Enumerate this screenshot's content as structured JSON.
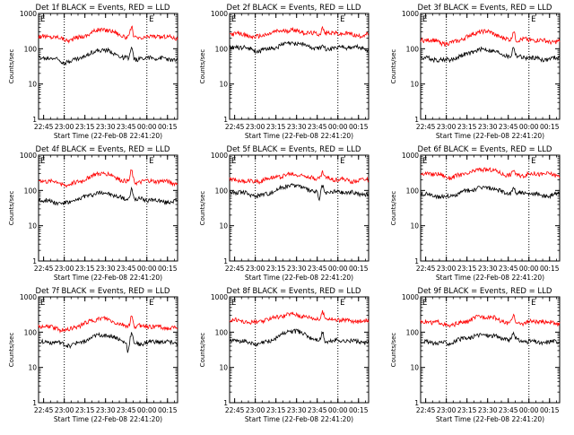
{
  "chart_data": [
    {
      "type": "line",
      "title": "Det 1f BLACK = Events, RED = LLD",
      "xlabel": "Start Time (22-Feb-08 22:41:20)",
      "ylabel": "Counts/sec",
      "yscale": "log",
      "ylim": [
        1,
        1000
      ],
      "yticks": [
        1,
        10,
        100,
        1000
      ],
      "ytick_labels": [
        "1",
        "10",
        "100",
        "1000"
      ],
      "xlim_minutes": [
        0,
        101
      ],
      "xticks_minutes": [
        3.67,
        18.67,
        33.67,
        48.67,
        63.67,
        78.67,
        93.67
      ],
      "xtick_labels": [
        "22:45",
        "23:00",
        "23:15",
        "23:30",
        "23:45",
        "00:00",
        "00:15"
      ],
      "vlines_minutes": [
        18.67,
        78.67
      ],
      "markers": [
        {
          "label": "E",
          "minutes": 1.3
        },
        {
          "label": "E",
          "minutes": 80.2
        }
      ],
      "series": [
        {
          "name": "LLD",
          "color": "#ff0000",
          "base": 210,
          "hump": 1.6,
          "spike": 2.0,
          "dip": false,
          "phase": 0.3
        },
        {
          "name": "Events",
          "color": "#000000",
          "base": 52,
          "hump": 1.7,
          "spike": 2.0,
          "dip": false,
          "phase": 1.1
        }
      ]
    },
    {
      "type": "line",
      "title": "Det 2f BLACK = Events, RED = LLD",
      "xlabel": "Start Time (22-Feb-08 22:41:20)",
      "ylabel": "Counts/sec",
      "yscale": "log",
      "ylim": [
        1,
        1000
      ],
      "yticks": [
        1,
        10,
        100,
        1000
      ],
      "ytick_labels": [
        "1",
        "10",
        "100",
        "1000"
      ],
      "xlim_minutes": [
        0,
        101
      ],
      "xticks_minutes": [
        3.67,
        18.67,
        33.67,
        48.67,
        63.67,
        78.67,
        93.67
      ],
      "xtick_labels": [
        "22:45",
        "23:00",
        "23:15",
        "23:30",
        "23:45",
        "00:00",
        "00:15"
      ],
      "vlines_minutes": [
        18.67,
        78.67
      ],
      "markers": [
        {
          "label": "E",
          "minutes": 1.3
        },
        {
          "label": "E",
          "minutes": 80.2
        }
      ],
      "series": [
        {
          "name": "LLD",
          "color": "#ff0000",
          "base": 260,
          "hump": 1.3,
          "spike": 1.5,
          "dip": false,
          "phase": 2.1
        },
        {
          "name": "Events",
          "color": "#000000",
          "base": 105,
          "hump": 1.3,
          "spike": 1.4,
          "dip": false,
          "phase": 0.7
        }
      ]
    },
    {
      "type": "line",
      "title": "Det 3f BLACK = Events, RED = LLD",
      "xlabel": "Start Time (22-Feb-08 22:41:20)",
      "ylabel": "Counts/sec",
      "yscale": "log",
      "ylim": [
        1,
        1000
      ],
      "yticks": [
        1,
        10,
        100,
        1000
      ],
      "ytick_labels": [
        "1",
        "10",
        "100",
        "1000"
      ],
      "xlim_minutes": [
        0,
        101
      ],
      "xticks_minutes": [
        3.67,
        18.67,
        33.67,
        48.67,
        63.67,
        78.67,
        93.67
      ],
      "xtick_labels": [
        "22:45",
        "23:00",
        "23:15",
        "23:30",
        "23:45",
        "00:00",
        "00:15"
      ],
      "vlines_minutes": [
        18.67,
        78.67
      ],
      "markers": [
        {
          "label": "E",
          "minutes": 1.3
        },
        {
          "label": "E",
          "minutes": 80.2
        }
      ],
      "series": [
        {
          "name": "LLD",
          "color": "#ff0000",
          "base": 170,
          "hump": 1.8,
          "spike": 1.9,
          "dip": false,
          "phase": 1.7
        },
        {
          "name": "Events",
          "color": "#000000",
          "base": 55,
          "hump": 1.8,
          "spike": 1.9,
          "dip": false,
          "phase": 2.9
        }
      ]
    },
    {
      "type": "line",
      "title": "Det 4f BLACK = Events, RED = LLD",
      "xlabel": "Start Time (22-Feb-08 22:41:20)",
      "ylabel": "Counts/sec",
      "yscale": "log",
      "ylim": [
        1,
        1000
      ],
      "yticks": [
        1,
        10,
        100,
        1000
      ],
      "ytick_labels": [
        "1",
        "10",
        "100",
        "1000"
      ],
      "xlim_minutes": [
        0,
        101
      ],
      "xticks_minutes": [
        3.67,
        18.67,
        33.67,
        48.67,
        63.67,
        78.67,
        93.67
      ],
      "xtick_labels": [
        "22:45",
        "23:00",
        "23:15",
        "23:30",
        "23:45",
        "00:00",
        "00:15"
      ],
      "vlines_minutes": [
        18.67,
        78.67
      ],
      "markers": [
        {
          "label": "E",
          "minutes": 1.3
        },
        {
          "label": "E",
          "minutes": 80.2
        }
      ],
      "series": [
        {
          "name": "LLD",
          "color": "#ff0000",
          "base": 175,
          "hump": 1.7,
          "spike": 2.1,
          "dip": false,
          "phase": 0.9
        },
        {
          "name": "Events",
          "color": "#000000",
          "base": 52,
          "hump": 1.7,
          "spike": 2.1,
          "dip": false,
          "phase": 2.3
        }
      ]
    },
    {
      "type": "line",
      "title": "Det 5f BLACK = Events, RED = LLD",
      "xlabel": "Start Time (22-Feb-08 22:41:20)",
      "ylabel": "Counts/sec",
      "yscale": "log",
      "ylim": [
        1,
        1000
      ],
      "yticks": [
        1,
        10,
        100,
        1000
      ],
      "ytick_labels": [
        "1",
        "10",
        "100",
        "1000"
      ],
      "xlim_minutes": [
        0,
        101
      ],
      "xticks_minutes": [
        3.67,
        18.67,
        33.67,
        48.67,
        63.67,
        78.67,
        93.67
      ],
      "xtick_labels": [
        "22:45",
        "23:00",
        "23:15",
        "23:30",
        "23:45",
        "00:00",
        "00:15"
      ],
      "vlines_minutes": [
        18.67,
        78.67
      ],
      "markers": [
        {
          "label": "E",
          "minutes": 1.3
        },
        {
          "label": "E",
          "minutes": 80.2
        }
      ],
      "series": [
        {
          "name": "LLD",
          "color": "#ff0000",
          "base": 205,
          "hump": 1.45,
          "spike": 1.5,
          "dip": false,
          "phase": 3.1
        },
        {
          "name": "Events",
          "color": "#000000",
          "base": 85,
          "hump": 1.6,
          "spike": 1.6,
          "dip": true,
          "phase": 1.4
        }
      ]
    },
    {
      "type": "line",
      "title": "Det 6f BLACK = Events, RED = LLD",
      "xlabel": "Start Time (22-Feb-08 22:41:20)",
      "ylabel": "Counts/sec",
      "yscale": "log",
      "ylim": [
        1,
        1000
      ],
      "yticks": [
        1,
        10,
        100,
        1000
      ],
      "ytick_labels": [
        "1",
        "10",
        "100",
        "1000"
      ],
      "xlim_minutes": [
        0,
        101
      ],
      "xticks_minutes": [
        3.67,
        18.67,
        33.67,
        48.67,
        63.67,
        78.67,
        93.67
      ],
      "xtick_labels": [
        "22:45",
        "23:00",
        "23:15",
        "23:30",
        "23:45",
        "00:00",
        "00:15"
      ],
      "vlines_minutes": [
        18.67,
        78.67
      ],
      "markers": [
        {
          "label": "E",
          "minutes": 1.3
        },
        {
          "label": "E",
          "minutes": 80.2
        }
      ],
      "series": [
        {
          "name": "LLD",
          "color": "#ff0000",
          "base": 280,
          "hump": 1.35,
          "spike": 1.4,
          "dip": false,
          "phase": 0.5
        },
        {
          "name": "Events",
          "color": "#000000",
          "base": 78,
          "hump": 1.6,
          "spike": 1.5,
          "dip": false,
          "phase": 2.6
        }
      ]
    },
    {
      "type": "line",
      "title": "Det 7f BLACK = Events, RED = LLD",
      "xlabel": "Start Time (22-Feb-08 22:41:20)",
      "ylabel": "Counts/sec",
      "yscale": "log",
      "ylim": [
        1,
        1000
      ],
      "yticks": [
        1,
        10,
        100,
        1000
      ],
      "ytick_labels": [
        "1",
        "10",
        "100",
        "1000"
      ],
      "xlim_minutes": [
        0,
        101
      ],
      "xticks_minutes": [
        3.67,
        18.67,
        33.67,
        48.67,
        63.67,
        78.67,
        93.67
      ],
      "xtick_labels": [
        "22:45",
        "23:00",
        "23:15",
        "23:30",
        "23:45",
        "00:00",
        "00:15"
      ],
      "vlines_minutes": [
        18.67,
        78.67
      ],
      "markers": [
        {
          "label": "E",
          "minutes": 1.3
        },
        {
          "label": "E",
          "minutes": 80.2
        }
      ],
      "series": [
        {
          "name": "LLD",
          "color": "#ff0000",
          "base": 140,
          "hump": 1.7,
          "spike": 2.0,
          "dip": false,
          "phase": 1.9
        },
        {
          "name": "Events",
          "color": "#000000",
          "base": 50,
          "hump": 1.6,
          "spike": 1.8,
          "dip": true,
          "phase": 0.2
        }
      ]
    },
    {
      "type": "line",
      "title": "Det 8f BLACK = Events, RED = LLD",
      "xlabel": "Start Time (22-Feb-08 22:41:20)",
      "ylabel": "Counts/sec",
      "yscale": "log",
      "ylim": [
        1,
        1000
      ],
      "yticks": [
        1,
        10,
        100,
        1000
      ],
      "ytick_labels": [
        "1",
        "10",
        "100",
        "1000"
      ],
      "xlim_minutes": [
        0,
        101
      ],
      "xticks_minutes": [
        3.67,
        18.67,
        33.67,
        48.67,
        63.67,
        78.67,
        93.67
      ],
      "xtick_labels": [
        "22:45",
        "23:00",
        "23:15",
        "23:30",
        "23:45",
        "00:00",
        "00:15"
      ],
      "vlines_minutes": [
        18.67,
        78.67
      ],
      "markers": [
        {
          "label": "E",
          "minutes": 1.3
        },
        {
          "label": "E",
          "minutes": 80.2
        }
      ],
      "series": [
        {
          "name": "LLD",
          "color": "#ff0000",
          "base": 220,
          "hump": 1.5,
          "spike": 1.6,
          "dip": false,
          "phase": 2.7
        },
        {
          "name": "Events",
          "color": "#000000",
          "base": 55,
          "hump": 1.9,
          "spike": 1.8,
          "dip": false,
          "phase": 1.2
        }
      ]
    },
    {
      "type": "line",
      "title": "Det 9f BLACK = Events, RED = LLD",
      "xlabel": "Start Time (22-Feb-08 22:41:20)",
      "ylabel": "Counts/sec",
      "yscale": "log",
      "ylim": [
        1,
        1000
      ],
      "yticks": [
        1,
        10,
        100,
        1000
      ],
      "ytick_labels": [
        "1",
        "10",
        "100",
        "1000"
      ],
      "xlim_minutes": [
        0,
        101
      ],
      "xticks_minutes": [
        3.67,
        18.67,
        33.67,
        48.67,
        63.67,
        78.67,
        93.67
      ],
      "xtick_labels": [
        "22:45",
        "23:00",
        "23:15",
        "23:30",
        "23:45",
        "00:00",
        "00:15"
      ],
      "vlines_minutes": [
        18.67,
        78.67
      ],
      "markers": [
        {
          "label": "E",
          "minutes": 1.3
        },
        {
          "label": "E",
          "minutes": 80.2
        }
      ],
      "series": [
        {
          "name": "LLD",
          "color": "#ff0000",
          "base": 185,
          "hump": 1.45,
          "spike": 1.8,
          "dip": false,
          "phase": 0.6
        },
        {
          "name": "Events",
          "color": "#000000",
          "base": 55,
          "hump": 1.6,
          "spike": 1.6,
          "dip": false,
          "phase": 3.3
        }
      ]
    }
  ]
}
